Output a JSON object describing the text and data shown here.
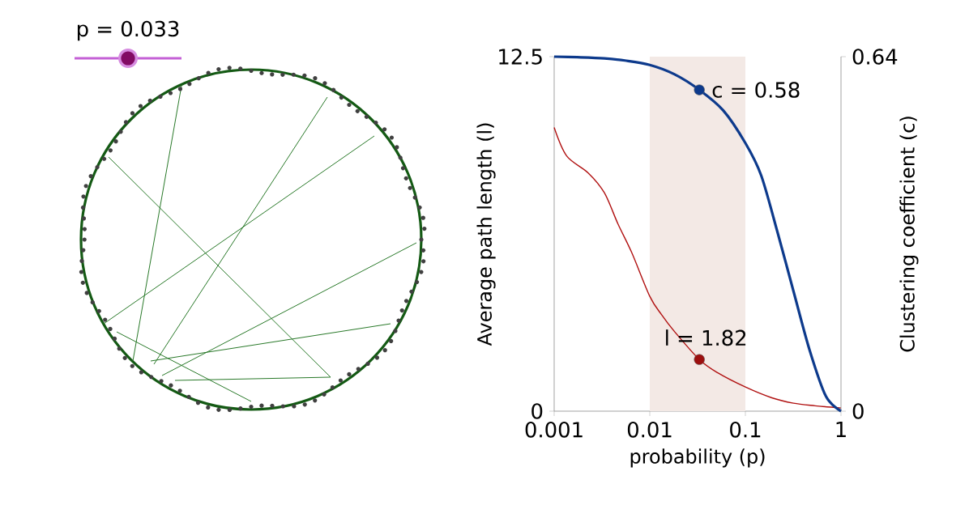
{
  "chart_data": {
    "type": "line",
    "xlabel": "probability (p)",
    "ylabel": "Average path length (l)",
    "y2label": "Clustering coefficient (c)",
    "log": "x",
    "xlim": [
      0.001,
      1
    ],
    "xticks": [
      0.001,
      0.01,
      0.1,
      1
    ],
    "ylim": [
      0,
      12.5
    ],
    "yticks": [
      0,
      12.5
    ],
    "y2lim": [
      0,
      0.64
    ],
    "y2ticks": [
      0,
      0.64
    ],
    "bands": [
      {
        "axis": "x",
        "from": 0.01,
        "to": 0.1,
        "color": "#f3e9e5"
      }
    ],
    "annotations": [
      "p = 0.033"
    ],
    "series": [
      {
        "color": "#b01010",
        "x": [
          0.001,
          0.00135,
          0.00227,
          0.00335,
          0.00465,
          0.00646,
          0.01,
          0.0133,
          0.0182,
          0.033,
          0.0515,
          0.1,
          0.189,
          0.318,
          0.536,
          1
        ],
        "values": [
          10.0,
          9.0,
          8.4,
          7.7,
          6.6,
          5.6,
          4.05,
          3.4,
          2.8,
          1.82,
          1.35,
          0.85,
          0.47,
          0.28,
          0.19,
          0.11
        ]
      },
      {
        "color": "#0d3a8c",
        "axis": "y2",
        "x": [
          0.001,
          0.00175,
          0.00335,
          0.0055,
          0.01,
          0.0182,
          0.033,
          0.0586,
          0.1,
          0.146,
          0.216,
          0.318,
          0.47,
          0.695,
          1
        ],
        "values": [
          0.64,
          0.639,
          0.637,
          0.633,
          0.625,
          0.608,
          0.58,
          0.543,
          0.484,
          0.426,
          0.324,
          0.217,
          0.11,
          0.027,
          0
        ]
      },
      {
        "type": "scatter",
        "color": "#9c0f0f",
        "x": [
          0.033
        ],
        "values": [
          1.82
        ],
        "value_labels": [
          "l = 1.82"
        ]
      },
      {
        "type": "scatter",
        "color": "#0d3a8c",
        "axis": "y2",
        "x": [
          0.033
        ],
        "values": [
          0.58
        ],
        "value_labels": [
          "c = 0.58"
        ]
      }
    ]
  }
}
